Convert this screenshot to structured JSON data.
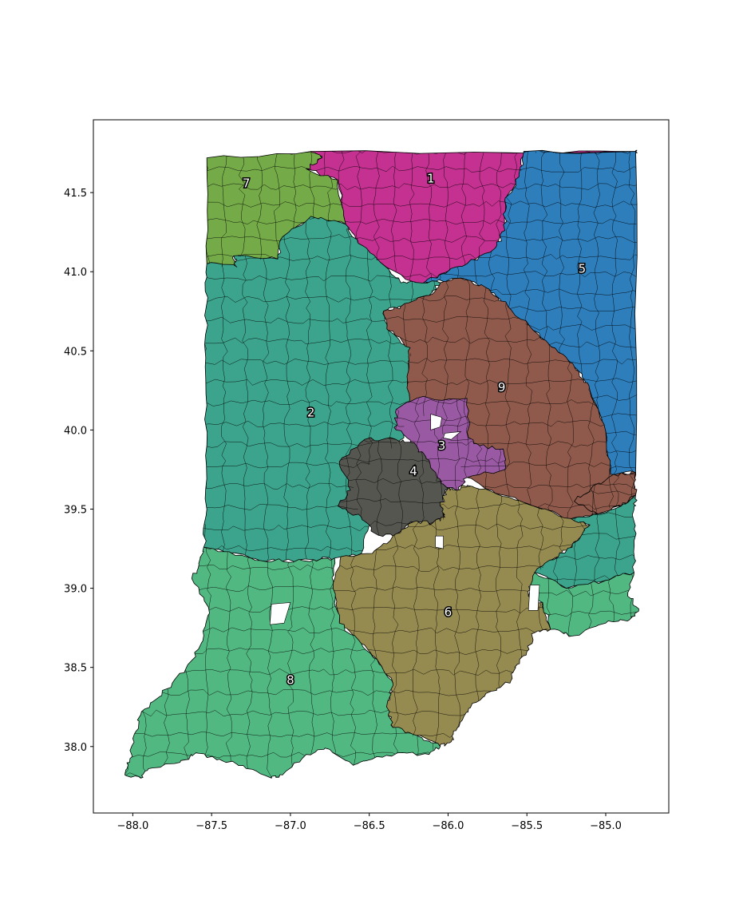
{
  "chart_data": {
    "type": "map",
    "xlim": [
      -88.25,
      -84.6
    ],
    "ylim": [
      37.58,
      41.96
    ],
    "x_ticks": [
      -88.0,
      -87.5,
      -87.0,
      -86.5,
      -86.0,
      -85.5,
      -85.0
    ],
    "y_ticks": [
      38.0,
      38.5,
      39.0,
      39.5,
      40.0,
      40.5,
      41.0,
      41.5
    ],
    "x_tick_labels": [
      "−88.0",
      "−87.5",
      "−87.0",
      "−86.5",
      "−86.0",
      "−85.5",
      "−85.0"
    ],
    "y_tick_labels": [
      "38.0",
      "38.5",
      "39.0",
      "39.5",
      "40.0",
      "40.5",
      "41.0",
      "41.5"
    ],
    "grid": false,
    "districts": [
      {
        "id": "1",
        "color": "#c43191",
        "label_lon": -86.11,
        "label_lat": 41.59,
        "polygon": [
          [
            -86.87,
            41.76
          ],
          [
            -84.81,
            41.76
          ],
          [
            -84.81,
            41.76
          ],
          [
            -85.52,
            41.76
          ],
          [
            -85.55,
            41.6
          ],
          [
            -85.64,
            41.45
          ],
          [
            -85.64,
            41.26
          ],
          [
            -85.7,
            41.15
          ],
          [
            -85.88,
            41.05
          ],
          [
            -86.03,
            40.99
          ],
          [
            -86.17,
            40.92
          ],
          [
            -86.23,
            40.94
          ],
          [
            -86.43,
            41.06
          ],
          [
            -86.57,
            41.18
          ],
          [
            -86.65,
            41.3
          ],
          [
            -86.7,
            41.58
          ],
          [
            -86.9,
            41.65
          ],
          [
            -86.8,
            41.72
          ]
        ]
      },
      {
        "id": "5",
        "color": "#2e7ebc",
        "label_lon": -85.15,
        "label_lat": 41.02,
        "polygon": [
          [
            -85.52,
            41.76
          ],
          [
            -84.81,
            41.76
          ],
          [
            -84.81,
            39.73
          ],
          [
            -84.97,
            39.72
          ],
          [
            -85.0,
            39.99
          ],
          [
            -85.1,
            40.25
          ],
          [
            -85.17,
            40.37
          ],
          [
            -85.3,
            40.49
          ],
          [
            -85.46,
            40.63
          ],
          [
            -85.62,
            40.78
          ],
          [
            -85.76,
            40.9
          ],
          [
            -85.92,
            40.96
          ],
          [
            -86.12,
            40.93
          ],
          [
            -86.17,
            40.92
          ],
          [
            -86.03,
            40.99
          ],
          [
            -85.88,
            41.05
          ],
          [
            -85.7,
            41.15
          ],
          [
            -85.64,
            41.26
          ],
          [
            -85.64,
            41.45
          ],
          [
            -85.55,
            41.6
          ]
        ]
      },
      {
        "id": "7",
        "color": "#74ab48",
        "label_lon": -87.28,
        "label_lat": 41.56,
        "polygon": [
          [
            -87.53,
            41.72
          ],
          [
            -86.87,
            41.76
          ],
          [
            -86.8,
            41.72
          ],
          [
            -86.9,
            41.65
          ],
          [
            -86.7,
            41.58
          ],
          [
            -86.65,
            41.3
          ],
          [
            -86.87,
            41.35
          ],
          [
            -87.05,
            41.22
          ],
          [
            -87.08,
            41.08
          ],
          [
            -87.36,
            41.1
          ],
          [
            -87.34,
            41.03
          ],
          [
            -87.53,
            41.05
          ]
        ]
      },
      {
        "id": "2",
        "color": "#3ca48c",
        "label_lon": -86.87,
        "label_lat": 40.11,
        "polygon": [
          [
            -87.53,
            41.05
          ],
          [
            -87.34,
            41.03
          ],
          [
            -87.36,
            41.1
          ],
          [
            -87.08,
            41.08
          ],
          [
            -87.05,
            41.22
          ],
          [
            -86.87,
            41.35
          ],
          [
            -86.65,
            41.3
          ],
          [
            -86.57,
            41.18
          ],
          [
            -86.43,
            41.06
          ],
          [
            -86.3,
            40.93
          ],
          [
            -86.23,
            40.94
          ],
          [
            -86.05,
            40.93
          ],
          [
            -86.12,
            40.85
          ],
          [
            -86.3,
            40.78
          ],
          [
            -86.41,
            40.75
          ],
          [
            -86.38,
            40.63
          ],
          [
            -86.24,
            40.52
          ],
          [
            -86.25,
            40.38
          ],
          [
            -86.25,
            40.15
          ],
          [
            -86.28,
            39.95
          ],
          [
            -86.4,
            39.85
          ],
          [
            -86.55,
            39.75
          ],
          [
            -86.62,
            39.55
          ],
          [
            -86.5,
            39.4
          ],
          [
            -86.55,
            39.22
          ],
          [
            -86.72,
            39.19
          ],
          [
            -86.85,
            39.18
          ],
          [
            -87.05,
            39.17
          ],
          [
            -87.25,
            39.19
          ],
          [
            -87.55,
            39.26
          ],
          [
            -87.53,
            39.5
          ],
          [
            -87.53,
            39.9
          ],
          [
            -87.54,
            40.4
          ],
          [
            -87.53,
            40.8
          ]
        ]
      },
      {
        "id": "9",
        "color": "#8f5a4c",
        "label_lon": -85.66,
        "label_lat": 40.27,
        "polygon": [
          [
            -86.41,
            40.75
          ],
          [
            -86.3,
            40.78
          ],
          [
            -86.12,
            40.85
          ],
          [
            -86.05,
            40.93
          ],
          [
            -85.92,
            40.96
          ],
          [
            -85.76,
            40.9
          ],
          [
            -85.62,
            40.78
          ],
          [
            -85.46,
            40.63
          ],
          [
            -85.3,
            40.49
          ],
          [
            -85.17,
            40.37
          ],
          [
            -85.1,
            40.25
          ],
          [
            -85.0,
            39.99
          ],
          [
            -84.97,
            39.72
          ],
          [
            -84.81,
            39.73
          ],
          [
            -84.81,
            39.59
          ],
          [
            -84.9,
            39.52
          ],
          [
            -85.05,
            39.47
          ],
          [
            -85.22,
            39.44
          ],
          [
            -85.46,
            39.52
          ],
          [
            -85.7,
            39.6
          ],
          [
            -85.88,
            39.7
          ],
          [
            -85.95,
            39.82
          ],
          [
            -86.0,
            39.93
          ],
          [
            -86.07,
            40.05
          ],
          [
            -86.2,
            40.1
          ],
          [
            -86.25,
            40.15
          ],
          [
            -86.25,
            40.38
          ],
          [
            -86.24,
            40.52
          ],
          [
            -86.38,
            40.63
          ]
        ]
      },
      {
        "id": "3",
        "color": "#9a59a3",
        "label_lon": -86.04,
        "label_lat": 39.9,
        "polygon": [
          [
            -86.33,
            40.13
          ],
          [
            -86.2,
            40.2
          ],
          [
            -85.88,
            40.2
          ],
          [
            -85.87,
            39.95
          ],
          [
            -85.8,
            39.9
          ],
          [
            -85.65,
            39.88
          ],
          [
            -85.64,
            39.75
          ],
          [
            -85.88,
            39.7
          ],
          [
            -85.95,
            39.62
          ],
          [
            -86.07,
            39.66
          ],
          [
            -86.12,
            39.78
          ],
          [
            -86.2,
            39.9
          ],
          [
            -86.33,
            40.0
          ]
        ]
      },
      {
        "id": "4",
        "color": "#555650",
        "label_lon": -86.22,
        "label_lat": 39.74,
        "polygon": [
          [
            -86.53,
            39.94
          ],
          [
            -86.33,
            39.94
          ],
          [
            -86.2,
            39.9
          ],
          [
            -86.14,
            39.82
          ],
          [
            -86.07,
            39.7
          ],
          [
            -86.0,
            39.63
          ],
          [
            -86.05,
            39.52
          ],
          [
            -86.02,
            39.45
          ],
          [
            -86.1,
            39.41
          ],
          [
            -86.22,
            39.42
          ],
          [
            -86.35,
            39.33
          ],
          [
            -86.47,
            39.35
          ],
          [
            -86.55,
            39.45
          ],
          [
            -86.7,
            39.52
          ],
          [
            -86.62,
            39.62
          ],
          [
            -86.69,
            39.8
          ]
        ]
      },
      {
        "id": "6",
        "color": "#958a50",
        "label_lon": -86.0,
        "label_lat": 38.85,
        "polygon": [
          [
            -86.35,
            39.33
          ],
          [
            -86.22,
            39.42
          ],
          [
            -86.1,
            39.41
          ],
          [
            -86.02,
            39.45
          ],
          [
            -86.05,
            39.52
          ],
          [
            -86.0,
            39.63
          ],
          [
            -85.95,
            39.62
          ],
          [
            -85.88,
            39.65
          ],
          [
            -85.7,
            39.6
          ],
          [
            -85.46,
            39.52
          ],
          [
            -85.22,
            39.44
          ],
          [
            -85.1,
            39.4
          ],
          [
            -85.18,
            39.3
          ],
          [
            -85.3,
            39.2
          ],
          [
            -85.45,
            39.1
          ],
          [
            -85.49,
            38.95
          ],
          [
            -85.4,
            38.91
          ],
          [
            -85.35,
            38.74
          ],
          [
            -85.45,
            38.72
          ],
          [
            -85.5,
            38.6
          ],
          [
            -85.56,
            38.52
          ],
          [
            -85.6,
            38.42
          ],
          [
            -85.72,
            38.35
          ],
          [
            -85.82,
            38.28
          ],
          [
            -85.9,
            38.19
          ],
          [
            -85.95,
            38.1
          ],
          [
            -85.98,
            38.03
          ],
          [
            -86.05,
            38.0
          ],
          [
            -86.2,
            38.07
          ],
          [
            -86.35,
            38.12
          ],
          [
            -86.39,
            38.25
          ],
          [
            -86.35,
            38.4
          ],
          [
            -86.45,
            38.55
          ],
          [
            -86.55,
            38.65
          ],
          [
            -86.69,
            38.78
          ],
          [
            -86.73,
            39.0
          ],
          [
            -86.68,
            39.2
          ],
          [
            -86.48,
            39.22
          ]
        ]
      },
      {
        "id": "8",
        "color": "#52b882",
        "label_lon": -87.0,
        "label_lat": 38.42,
        "polygon": [
          [
            -87.55,
            39.26
          ],
          [
            -87.25,
            39.19
          ],
          [
            -87.05,
            39.17
          ],
          [
            -86.85,
            39.18
          ],
          [
            -86.72,
            39.19
          ],
          [
            -86.73,
            39.0
          ],
          [
            -86.69,
            38.78
          ],
          [
            -86.55,
            38.65
          ],
          [
            -86.45,
            38.55
          ],
          [
            -86.35,
            38.4
          ],
          [
            -86.39,
            38.25
          ],
          [
            -86.35,
            38.12
          ],
          [
            -86.2,
            38.07
          ],
          [
            -86.05,
            38.0
          ],
          [
            -86.12,
            37.95
          ],
          [
            -86.32,
            37.96
          ],
          [
            -86.52,
            37.91
          ],
          [
            -86.6,
            37.88
          ],
          [
            -86.78,
            37.99
          ],
          [
            -86.9,
            37.95
          ],
          [
            -87.05,
            37.82
          ],
          [
            -87.12,
            37.8
          ],
          [
            -87.3,
            37.88
          ],
          [
            -87.45,
            37.92
          ],
          [
            -87.6,
            37.96
          ],
          [
            -87.7,
            37.9
          ],
          [
            -87.9,
            37.86
          ],
          [
            -87.95,
            37.8
          ],
          [
            -88.05,
            37.82
          ],
          [
            -88.02,
            37.9
          ],
          [
            -88.0,
            38.05
          ],
          [
            -87.95,
            38.2
          ],
          [
            -87.85,
            38.3
          ],
          [
            -87.75,
            38.4
          ],
          [
            -87.62,
            38.55
          ],
          [
            -87.55,
            38.7
          ],
          [
            -87.52,
            38.88
          ],
          [
            -87.62,
            39.05
          ],
          [
            -87.58,
            39.15
          ]
        ]
      },
      {
        "id": "9",
        "color": "#8f5a4c",
        "label_lon": null,
        "label_lat": null,
        "polygon": [
          [
            -84.81,
            39.59
          ],
          [
            -84.81,
            39.73
          ],
          [
            -84.95,
            39.72
          ],
          [
            -85.1,
            39.62
          ],
          [
            -85.2,
            39.55
          ],
          [
            -85.05,
            39.47
          ],
          [
            -84.9,
            39.52
          ]
        ]
      },
      {
        "id": "2",
        "color": "#3ca48c",
        "label_lon": null,
        "label_lat": null,
        "polygon": [
          [
            -84.81,
            39.59
          ],
          [
            -84.9,
            39.52
          ],
          [
            -85.05,
            39.47
          ],
          [
            -85.22,
            39.44
          ],
          [
            -85.1,
            39.4
          ],
          [
            -85.18,
            39.3
          ],
          [
            -85.3,
            39.2
          ],
          [
            -85.45,
            39.1
          ],
          [
            -85.25,
            39.0
          ],
          [
            -85.0,
            39.05
          ],
          [
            -84.82,
            39.1
          ],
          [
            -84.82,
            39.3
          ],
          [
            -84.82,
            39.5
          ]
        ]
      },
      {
        "id": "8",
        "color": "#52b882",
        "label_lon": null,
        "label_lat": null,
        "polygon": [
          [
            -85.45,
            39.1
          ],
          [
            -85.49,
            38.95
          ],
          [
            -85.4,
            38.91
          ],
          [
            -85.35,
            38.74
          ],
          [
            -85.2,
            38.7
          ],
          [
            -85.0,
            38.78
          ],
          [
            -84.85,
            38.8
          ],
          [
            -84.79,
            38.87
          ],
          [
            -84.86,
            38.95
          ],
          [
            -84.82,
            39.1
          ],
          [
            -85.0,
            39.05
          ],
          [
            -85.25,
            39.0
          ]
        ]
      }
    ],
    "labels": [
      "1",
      "2",
      "3",
      "4",
      "5",
      "6",
      "7",
      "8",
      "9"
    ]
  }
}
